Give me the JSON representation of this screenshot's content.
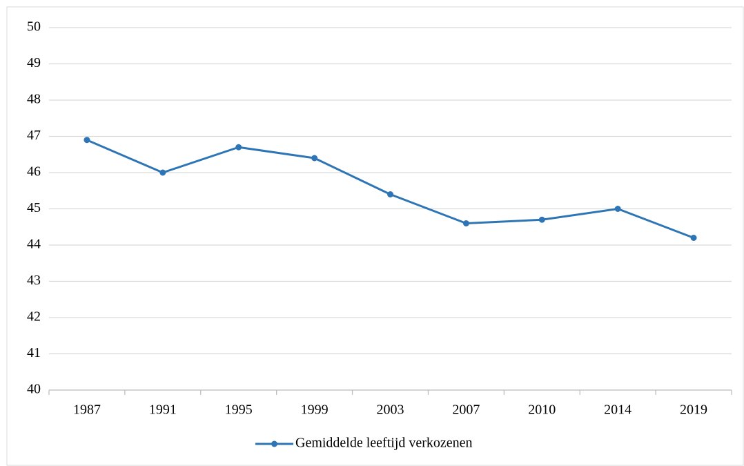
{
  "chart_data": {
    "type": "line",
    "categories": [
      "1987",
      "1991",
      "1995",
      "1999",
      "2003",
      "2007",
      "2010",
      "2014",
      "2019"
    ],
    "series": [
      {
        "name": "Gemiddelde leeftijd verkozenen",
        "color": "#2e75b6",
        "values": [
          46.9,
          46.0,
          46.7,
          46.4,
          45.4,
          44.6,
          44.7,
          45.0,
          44.2
        ]
      }
    ],
    "ylim": [
      40,
      50
    ],
    "yticks": [
      40,
      41,
      42,
      43,
      44,
      45,
      46,
      47,
      48,
      49,
      50
    ],
    "grid": true,
    "legend": "bottom"
  }
}
